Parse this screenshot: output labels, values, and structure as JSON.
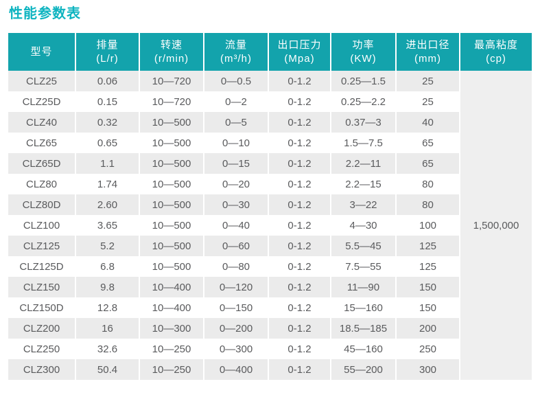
{
  "page": {
    "title": "性能参数表"
  },
  "colors": {
    "title": "#0eb4c0",
    "header_bg": "#13a3ac",
    "header_text": "#ffffff",
    "row_stripe": "#ebebeb",
    "row_plain": "#ffffff",
    "merged_cell_bg": "#efefef",
    "body_text": "#595a5c"
  },
  "chart_data": {
    "type": "table",
    "title": "性能参数表",
    "columns": [
      {
        "label": "型号",
        "unit": ""
      },
      {
        "label": "排量",
        "unit": "(L/r)"
      },
      {
        "label": "转速",
        "unit": "(r/min)"
      },
      {
        "label": "流量",
        "unit": "(m³/h)"
      },
      {
        "label": "出口压力",
        "unit": "(Mpa)"
      },
      {
        "label": "功率",
        "unit": "(KW)"
      },
      {
        "label": "进出口径",
        "unit": "(mm)"
      },
      {
        "label": "最高粘度",
        "unit": "(cp)"
      }
    ],
    "rows": [
      [
        "CLZ25",
        "0.06",
        "10—720",
        "0—0.5",
        "0-1.2",
        "0.25—1.5",
        "25"
      ],
      [
        "CLZ25D",
        "0.15",
        "10—720",
        "0—2",
        "0-1.2",
        "0.25—2.2",
        "25"
      ],
      [
        "CLZ40",
        "0.32",
        "10—500",
        "0—5",
        "0-1.2",
        "0.37—3",
        "40"
      ],
      [
        "CLZ65",
        "0.65",
        "10—500",
        "0—10",
        "0-1.2",
        "1.5—7.5",
        "65"
      ],
      [
        "CLZ65D",
        "1.1",
        "10—500",
        "0—15",
        "0-1.2",
        "2.2—11",
        "65"
      ],
      [
        "CLZ80",
        "1.74",
        "10—500",
        "0—20",
        "0-1.2",
        "2.2—15",
        "80"
      ],
      [
        "CLZ80D",
        "2.60",
        "10—500",
        "0—30",
        "0-1.2",
        "3—22",
        "80"
      ],
      [
        "CLZ100",
        "3.65",
        "10—500",
        "0—40",
        "0-1.2",
        "4—30",
        "100"
      ],
      [
        "CLZ125",
        "5.2",
        "10—500",
        "0—60",
        "0-1.2",
        "5.5—45",
        "125"
      ],
      [
        "CLZ125D",
        "6.8",
        "10—500",
        "0—80",
        "0-1.2",
        "7.5—55",
        "125"
      ],
      [
        "CLZ150",
        "9.8",
        "10—400",
        "0—120",
        "0-1.2",
        "11—90",
        "150"
      ],
      [
        "CLZ150D",
        "12.8",
        "10—400",
        "0—150",
        "0-1.2",
        "15—160",
        "150"
      ],
      [
        "CLZ200",
        "16",
        "10—300",
        "0—200",
        "0-1.2",
        "18.5—185",
        "200"
      ],
      [
        "CLZ250",
        "32.6",
        "10—250",
        "0—300",
        "0-1.2",
        "45—160",
        "250"
      ],
      [
        "CLZ300",
        "50.4",
        "10—250",
        "0—400",
        "0-1.2",
        "55—200",
        "300"
      ]
    ],
    "merged_last_column": {
      "column": "最高粘度(cp)",
      "value": "1,500,000",
      "rowspan": 15
    }
  }
}
